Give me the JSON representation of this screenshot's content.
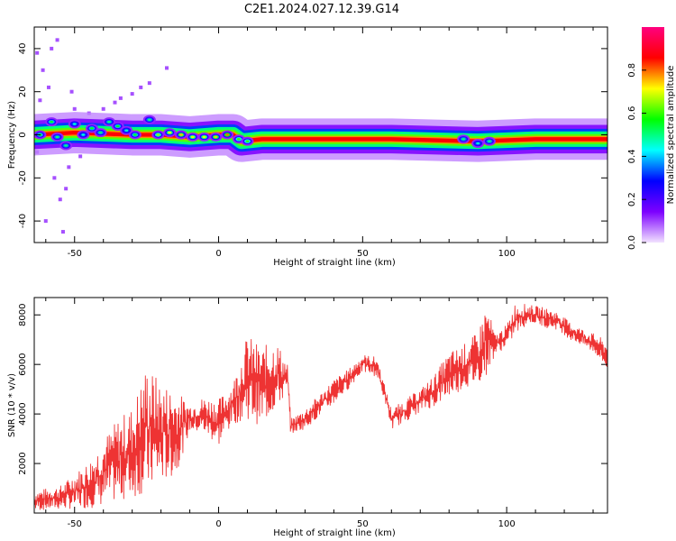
{
  "title": "C2E1.2024.027.12.39.G14",
  "chart_data": [
    {
      "type": "heatmap",
      "xlabel": "Height of straight line (km)",
      "ylabel": "Frequency (Hz)",
      "xlim": [
        -64,
        135
      ],
      "ylim": [
        -50,
        50
      ],
      "xticks": [
        -50,
        0,
        50,
        100
      ],
      "yticks": [
        -40,
        -20,
        0,
        20,
        40
      ],
      "colorbar": {
        "label": "Normalized spectral amplitude",
        "range": [
          0,
          1
        ],
        "ticks": [
          "0.0",
          "0.2",
          "0.4",
          "0.6",
          "0.8"
        ],
        "colors": [
          "#f2e2ff",
          "#7d00ff",
          "#0000ff",
          "#00ffff",
          "#00ff00",
          "#ffff00",
          "#ff0000",
          "#ff007f"
        ]
      },
      "ridge": {
        "points": [
          {
            "x": -64,
            "y": 0
          },
          {
            "x": -50,
            "y": 1
          },
          {
            "x": -30,
            "y": 0
          },
          {
            "x": -20,
            "y": 0
          },
          {
            "x": -10,
            "y": -1
          },
          {
            "x": 0,
            "y": 0
          },
          {
            "x": 5,
            "y": 0
          },
          {
            "x": 8,
            "y": -3
          },
          {
            "x": 15,
            "y": -2
          },
          {
            "x": 30,
            "y": -2
          },
          {
            "x": 60,
            "y": -2
          },
          {
            "x": 90,
            "y": -3
          },
          {
            "x": 110,
            "y": -2
          },
          {
            "x": 135,
            "y": -2
          }
        ]
      },
      "blobs": [
        {
          "x": -62,
          "y": 0,
          "v": 0.55
        },
        {
          "x": -58,
          "y": 6,
          "v": 0.55
        },
        {
          "x": -56,
          "y": -1,
          "v": 0.5
        },
        {
          "x": -53,
          "y": -5,
          "v": 0.5
        },
        {
          "x": -50,
          "y": 5,
          "v": 0.45
        },
        {
          "x": -47,
          "y": 0,
          "v": 0.45
        },
        {
          "x": -44,
          "y": 3,
          "v": 0.55
        },
        {
          "x": -41,
          "y": 1,
          "v": 0.5
        },
        {
          "x": -38,
          "y": 6,
          "v": 0.5
        },
        {
          "x": -35,
          "y": 4,
          "v": 0.55
        },
        {
          "x": -32,
          "y": 2,
          "v": 0.45
        },
        {
          "x": -29,
          "y": 0,
          "v": 0.55
        },
        {
          "x": -24,
          "y": 7,
          "v": 0.5
        },
        {
          "x": -21,
          "y": 0,
          "v": 0.65
        },
        {
          "x": -17,
          "y": 1,
          "v": 0.7
        },
        {
          "x": -13,
          "y": 0,
          "v": 0.75
        },
        {
          "x": -9,
          "y": -1,
          "v": 0.7
        },
        {
          "x": -5,
          "y": -1,
          "v": 0.7
        },
        {
          "x": -1,
          "y": -1,
          "v": 0.75
        },
        {
          "x": 3,
          "y": 0,
          "v": 0.8
        },
        {
          "x": 7,
          "y": -2,
          "v": 0.6
        },
        {
          "x": 10,
          "y": -3,
          "v": 0.6
        },
        {
          "x": 85,
          "y": -2,
          "v": 0.5
        },
        {
          "x": 90,
          "y": -4,
          "v": 0.45
        },
        {
          "x": 94,
          "y": -3,
          "v": 0.5
        }
      ],
      "scatter_noise": [
        {
          "x": -63,
          "y": 38
        },
        {
          "x": -61,
          "y": 30
        },
        {
          "x": -59,
          "y": 22
        },
        {
          "x": -57,
          "y": -20
        },
        {
          "x": -56,
          "y": 44
        },
        {
          "x": -55,
          "y": -30
        },
        {
          "x": -54,
          "y": -45
        },
        {
          "x": -52,
          "y": -15
        },
        {
          "x": -50,
          "y": 12
        },
        {
          "x": -48,
          "y": -10
        },
        {
          "x": -45,
          "y": 10
        },
        {
          "x": -40,
          "y": 12
        },
        {
          "x": -36,
          "y": 15
        },
        {
          "x": -34,
          "y": 17
        },
        {
          "x": -30,
          "y": 19
        },
        {
          "x": -27,
          "y": 22
        },
        {
          "x": -24,
          "y": 24
        },
        {
          "x": -18,
          "y": 31
        },
        {
          "x": -63,
          "y": -8
        },
        {
          "x": -62,
          "y": 16
        },
        {
          "x": -60,
          "y": -40
        },
        {
          "x": -58,
          "y": 40
        },
        {
          "x": -53,
          "y": -25
        },
        {
          "x": -51,
          "y": 20
        }
      ]
    },
    {
      "type": "line",
      "xlabel": "Height of straight line (km)",
      "ylabel": "SNR (10 * v/v)",
      "xlim": [
        -64,
        135
      ],
      "ylim": [
        0,
        8700
      ],
      "xticks": [
        -50,
        0,
        50,
        100
      ],
      "yticks": [
        2000,
        4000,
        6000,
        8000
      ],
      "series": [
        {
          "color": "#ee3333",
          "envelope": [
            {
              "x": -64,
              "lo": 100,
              "hi": 900
            },
            {
              "x": -55,
              "lo": 150,
              "hi": 1100
            },
            {
              "x": -45,
              "lo": 200,
              "hi": 2100
            },
            {
              "x": -40,
              "lo": 300,
              "hi": 3000
            },
            {
              "x": -35,
              "lo": 500,
              "hi": 3800
            },
            {
              "x": -30,
              "lo": 600,
              "hi": 4300
            },
            {
              "x": -25,
              "lo": 800,
              "hi": 6000
            },
            {
              "x": -20,
              "lo": 1200,
              "hi": 5300
            },
            {
              "x": -15,
              "lo": 1500,
              "hi": 5000
            },
            {
              "x": -10,
              "lo": 3300,
              "hi": 4400
            },
            {
              "x": -5,
              "lo": 3200,
              "hi": 4700
            },
            {
              "x": 0,
              "lo": 2700,
              "hi": 4600
            },
            {
              "x": 5,
              "lo": 3600,
              "hi": 5300
            },
            {
              "x": 10,
              "lo": 3800,
              "hi": 7200
            },
            {
              "x": 15,
              "lo": 3500,
              "hi": 6700
            },
            {
              "x": 20,
              "lo": 4200,
              "hi": 7000
            },
            {
              "x": 24,
              "lo": 4800,
              "hi": 6000
            },
            {
              "x": 25,
              "lo": 3200,
              "hi": 3800
            },
            {
              "x": 30,
              "lo": 3400,
              "hi": 4200
            },
            {
              "x": 35,
              "lo": 3900,
              "hi": 4800
            },
            {
              "x": 40,
              "lo": 4400,
              "hi": 5400
            },
            {
              "x": 45,
              "lo": 5000,
              "hi": 5800
            },
            {
              "x": 50,
              "lo": 5700,
              "hi": 6400
            },
            {
              "x": 55,
              "lo": 5500,
              "hi": 6300
            },
            {
              "x": 58,
              "lo": 4400,
              "hi": 5000
            },
            {
              "x": 60,
              "lo": 3400,
              "hi": 4200
            },
            {
              "x": 65,
              "lo": 3700,
              "hi": 4600
            },
            {
              "x": 70,
              "lo": 4100,
              "hi": 5000
            },
            {
              "x": 75,
              "lo": 4300,
              "hi": 5600
            },
            {
              "x": 80,
              "lo": 4700,
              "hi": 6500
            },
            {
              "x": 85,
              "lo": 5000,
              "hi": 6800
            },
            {
              "x": 90,
              "lo": 5200,
              "hi": 7300
            },
            {
              "x": 93,
              "lo": 5600,
              "hi": 8500
            },
            {
              "x": 96,
              "lo": 6400,
              "hi": 7200
            },
            {
              "x": 100,
              "lo": 6700,
              "hi": 7600
            },
            {
              "x": 103,
              "lo": 7200,
              "hi": 8500
            },
            {
              "x": 108,
              "lo": 7700,
              "hi": 8400
            },
            {
              "x": 113,
              "lo": 7500,
              "hi": 8300
            },
            {
              "x": 118,
              "lo": 7400,
              "hi": 8100
            },
            {
              "x": 122,
              "lo": 7000,
              "hi": 7700
            },
            {
              "x": 127,
              "lo": 6700,
              "hi": 7400
            },
            {
              "x": 131,
              "lo": 6400,
              "hi": 7200
            },
            {
              "x": 135,
              "lo": 5700,
              "hi": 6900
            }
          ]
        }
      ]
    }
  ]
}
